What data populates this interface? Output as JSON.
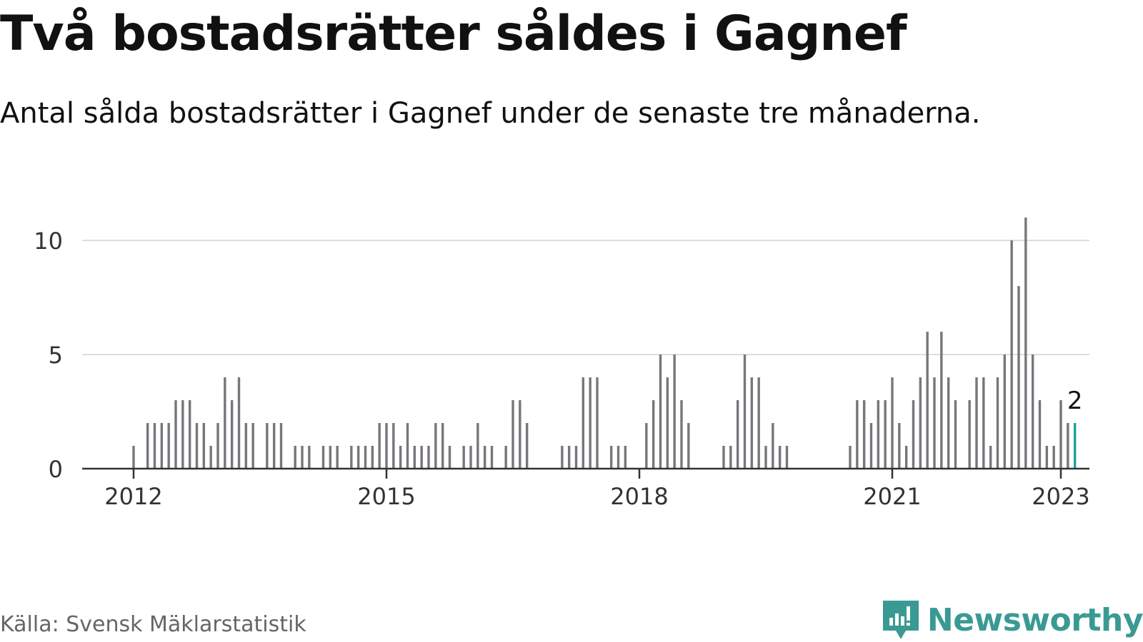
{
  "title": "Två bostadsrätter såldes i Gagnef",
  "subtitle": "Antal sålda bostadsrätter i Gagnef under de senaste tre månaderna.",
  "source": "Källa: Svensk Mäklarstatistik",
  "brand": {
    "name": "Newsworthy",
    "icon": "newsworthy-logo-icon"
  },
  "colors": {
    "bar": "#77767b",
    "highlight": "#1aa39a",
    "grid": "#dddddd",
    "axis": "#333333",
    "brand": "#3a9a93"
  },
  "chart_data": {
    "type": "bar",
    "x_unit": "month",
    "x_start": "2012-01",
    "ylim": [
      0,
      11
    ],
    "y_ticks": [
      0,
      5,
      10
    ],
    "x_ticks": [
      "2012",
      "2015",
      "2018",
      "2021",
      "2023"
    ],
    "grid": true,
    "highlight_last": true,
    "last_value_label": "2",
    "values": [
      1,
      0,
      2,
      2,
      2,
      2,
      3,
      3,
      3,
      2,
      2,
      1,
      2,
      4,
      3,
      4,
      2,
      2,
      0,
      2,
      2,
      2,
      0,
      1,
      1,
      1,
      0,
      1,
      1,
      1,
      0,
      1,
      1,
      1,
      1,
      2,
      2,
      2,
      1,
      2,
      1,
      1,
      1,
      2,
      2,
      1,
      0,
      1,
      1,
      2,
      1,
      1,
      0,
      1,
      3,
      3,
      2,
      0,
      0,
      0,
      0,
      1,
      1,
      1,
      4,
      4,
      4,
      0,
      1,
      1,
      1,
      0,
      0,
      2,
      3,
      5,
      4,
      5,
      3,
      2,
      0,
      0,
      0,
      0,
      1,
      1,
      3,
      5,
      4,
      4,
      1,
      2,
      1,
      1,
      0,
      0,
      0,
      0,
      0,
      0,
      0,
      0,
      1,
      3,
      3,
      2,
      3,
      3,
      4,
      2,
      1,
      3,
      4,
      6,
      4,
      6,
      4,
      3,
      0,
      3,
      4,
      4,
      1,
      4,
      5,
      10,
      8,
      11,
      5,
      3,
      1,
      1,
      3,
      2,
      2
    ]
  }
}
